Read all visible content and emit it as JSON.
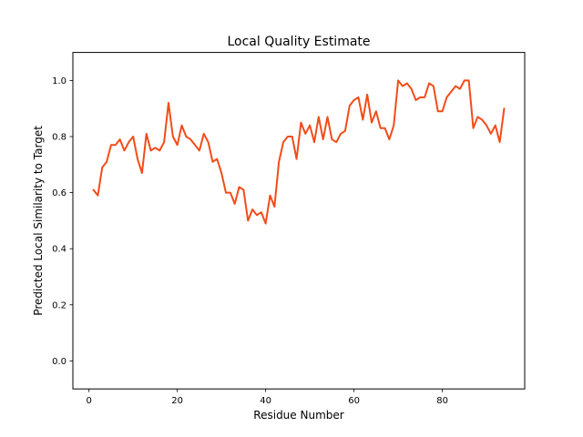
{
  "chart_data": {
    "type": "line",
    "title": "Local Quality Estimate",
    "xlabel": "Residue Number",
    "ylabel": "Predicted Local Similarity to Target",
    "xlim": [
      -3.65,
      98.65
    ],
    "ylim": [
      -0.1,
      1.1
    ],
    "xticks": [
      0,
      20,
      40,
      60,
      80
    ],
    "xtick_labels": [
      "0",
      "20",
      "40",
      "60",
      "80"
    ],
    "yticks": [
      0.0,
      0.2,
      0.4,
      0.6,
      0.8,
      1.0
    ],
    "ytick_labels": [
      "0.0",
      "0.2",
      "0.4",
      "0.6",
      "0.8",
      "1.0"
    ],
    "grid": false,
    "series": [
      {
        "color": "#f24c1a",
        "x": [
          1,
          2,
          3,
          4,
          5,
          6,
          7,
          8,
          9,
          10,
          11,
          12,
          13,
          14,
          15,
          16,
          17,
          18,
          19,
          20,
          21,
          22,
          23,
          24,
          25,
          26,
          27,
          28,
          29,
          30,
          31,
          32,
          33,
          34,
          35,
          36,
          37,
          38,
          39,
          40,
          41,
          42,
          43,
          44,
          45,
          46,
          47,
          48,
          49,
          50,
          51,
          52,
          53,
          54,
          55,
          56,
          57,
          58,
          59,
          60,
          61,
          62,
          63,
          64,
          65,
          66,
          67,
          68,
          69,
          70,
          71,
          72,
          73,
          74,
          75,
          76,
          77,
          78,
          79,
          80,
          81,
          82,
          83,
          84,
          85,
          86,
          87,
          88,
          89,
          90,
          91,
          92,
          93,
          94
        ],
        "values": [
          0.61,
          0.59,
          0.69,
          0.71,
          0.77,
          0.77,
          0.79,
          0.75,
          0.78,
          0.8,
          0.72,
          0.67,
          0.81,
          0.75,
          0.76,
          0.75,
          0.78,
          0.92,
          0.8,
          0.77,
          0.84,
          0.8,
          0.79,
          0.77,
          0.75,
          0.81,
          0.78,
          0.71,
          0.72,
          0.67,
          0.6,
          0.6,
          0.56,
          0.62,
          0.61,
          0.5,
          0.54,
          0.52,
          0.53,
          0.49,
          0.59,
          0.55,
          0.71,
          0.78,
          0.8,
          0.8,
          0.72,
          0.85,
          0.81,
          0.84,
          0.78,
          0.87,
          0.79,
          0.87,
          0.79,
          0.78,
          0.81,
          0.82,
          0.91,
          0.93,
          0.94,
          0.86,
          0.95,
          0.85,
          0.89,
          0.83,
          0.83,
          0.79,
          0.84,
          1.0,
          0.98,
          0.99,
          0.97,
          0.93,
          0.94,
          0.94,
          0.99,
          0.98,
          0.89,
          0.89,
          0.94,
          0.96,
          0.98,
          0.97,
          1.0,
          1.0,
          0.83,
          0.87,
          0.86,
          0.84,
          0.81,
          0.84,
          0.78,
          0.9
        ]
      }
    ]
  }
}
